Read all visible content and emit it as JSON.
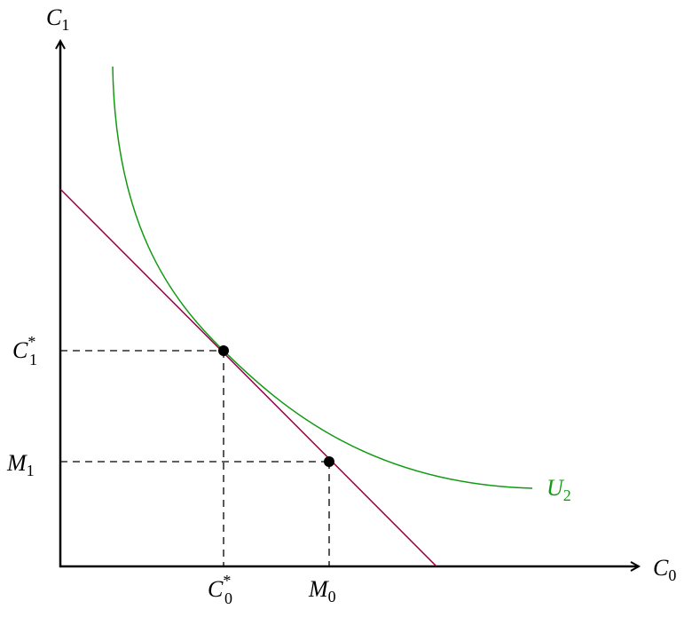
{
  "axes": {
    "y": {
      "base": "C",
      "sub": "1"
    },
    "x": {
      "base": "C",
      "sub": "0"
    }
  },
  "ticks": {
    "c1_star": {
      "base": "C",
      "sub": "1",
      "sup": "*"
    },
    "m1": {
      "base": "M",
      "sub": "1"
    },
    "c0_star": {
      "base": "C",
      "sub": "0",
      "sup": "*"
    },
    "m0": {
      "base": "M",
      "sub": "0"
    }
  },
  "curve": {
    "base": "U",
    "sub": "2"
  }
}
